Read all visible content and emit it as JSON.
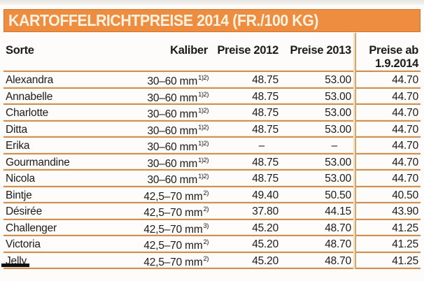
{
  "title": "KARTOFFELRICHTPREISE 2014 (FR./100 KG)",
  "colors": {
    "band_orange": "#ee8c40",
    "band_border": "#d4752b",
    "band_text": "#f8f2e1",
    "divider_dark": "#cf9055",
    "divider_light": "#f6e9d0",
    "vertical_rule_light": "#f1e2c4",
    "vertical_rule_dark": "#c9965c",
    "text": "#1b1b1b",
    "background": "#fdfcfa"
  },
  "chart_data": {
    "type": "table",
    "title": "KARTOFFELRICHTPREISE 2014 (FR./100 KG)",
    "columns": {
      "sorte": "Sorte",
      "kaliber": "Kaliber",
      "p2012": "Preise 2012",
      "p2013": "Preise 2013",
      "pab_line1": "Preise ab",
      "pab_line2": "1.9.2014"
    },
    "rows": [
      {
        "sorte": "Alexandra",
        "kaliber": "30–60 mm",
        "sup": "1)2)",
        "p2012": "48.75",
        "p2013": "53.00",
        "pab": "44.70"
      },
      {
        "sorte": "Annabelle",
        "kaliber": "30–60 mm",
        "sup": "1)2)",
        "p2012": "48.75",
        "p2013": "53.00",
        "pab": "44.70"
      },
      {
        "sorte": "Charlotte",
        "kaliber": "30–60 mm",
        "sup": "1)2)",
        "p2012": "48.75",
        "p2013": "53.00",
        "pab": "44.70"
      },
      {
        "sorte": "Ditta",
        "kaliber": "30–60 mm",
        "sup": "1)2)",
        "p2012": "48.75",
        "p2013": "53.00",
        "pab": "44.70"
      },
      {
        "sorte": "Erika",
        "kaliber": "30–60 mm",
        "sup": "1)2)",
        "p2012": "–",
        "p2013": "–",
        "pab": "44.70"
      },
      {
        "sorte": "Gourmandine",
        "kaliber": "30–60 mm",
        "sup": "1)2)",
        "p2012": "48.75",
        "p2013": "53.00",
        "pab": "44.70"
      },
      {
        "sorte": "Nicola",
        "kaliber": "30–60 mm",
        "sup": "1)2)",
        "p2012": "48.75",
        "p2013": "53.00",
        "pab": "44.70"
      },
      {
        "sorte": "Bintje",
        "kaliber": "42,5–70 mm",
        "sup": "2)",
        "p2012": "49.40",
        "p2013": "50.50",
        "pab": "40.50"
      },
      {
        "sorte": "Désirée",
        "kaliber": "42,5–70 mm",
        "sup": "2)",
        "p2012": "37.80",
        "p2013": "44.15",
        "pab": "43.90"
      },
      {
        "sorte": "Challenger",
        "kaliber": "42,5–70 mm",
        "sup": "3)",
        "p2012": "45.20",
        "p2013": "48.70",
        "pab": "41.25"
      },
      {
        "sorte": "Victoria",
        "kaliber": "42,5–70 mm",
        "sup": "2)",
        "p2012": "45.20",
        "p2013": "48.70",
        "pab": "41.25"
      },
      {
        "sorte": "Jelly",
        "kaliber": "42,5–70 mm",
        "sup": "2)",
        "p2012": "45.20",
        "p2013": "48.70",
        "pab": "41.25"
      }
    ]
  }
}
